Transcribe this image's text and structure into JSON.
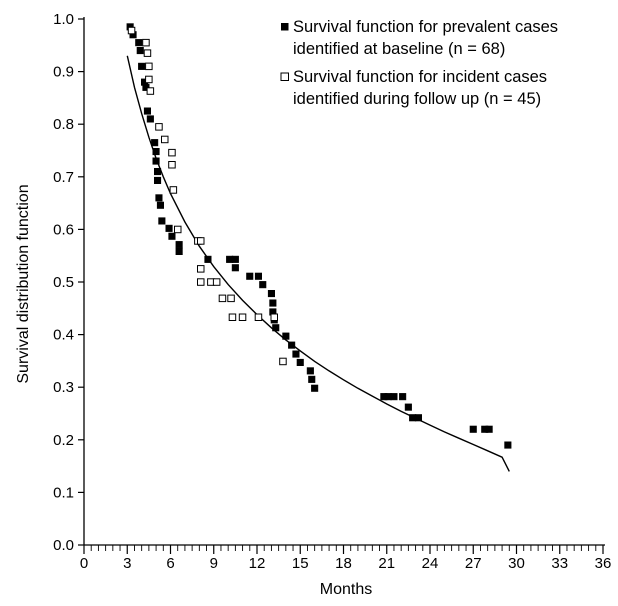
{
  "chart_data": {
    "type": "scatter",
    "xlabel": "Months",
    "ylabel": "Survival distribution function",
    "xlim": [
      0,
      36
    ],
    "ylim": [
      0.0,
      1.0
    ],
    "xticks": [
      0,
      3,
      6,
      9,
      12,
      15,
      18,
      21,
      24,
      27,
      30,
      33,
      36
    ],
    "yticks": [
      0.0,
      0.1,
      0.2,
      0.3,
      0.4,
      0.5,
      0.6,
      0.7,
      0.8,
      0.9,
      1.0
    ],
    "x_minor_step": 0.5,
    "grid": false,
    "legend": {
      "position": "top-right"
    },
    "series": [
      {
        "name": "Survival function for prevalent cases identified at baseline (n = 68)",
        "marker": "filled-square",
        "color": "#000000",
        "points": [
          [
            3.2,
            0.985
          ],
          [
            3.4,
            0.97
          ],
          [
            3.8,
            0.955
          ],
          [
            3.9,
            0.94
          ],
          [
            4.0,
            0.91
          ],
          [
            4.2,
            0.88
          ],
          [
            4.3,
            0.87
          ],
          [
            4.4,
            0.825
          ],
          [
            4.6,
            0.81
          ],
          [
            4.9,
            0.765
          ],
          [
            5.0,
            0.748
          ],
          [
            5.0,
            0.73
          ],
          [
            5.1,
            0.71
          ],
          [
            5.1,
            0.693
          ],
          [
            5.2,
            0.66
          ],
          [
            5.3,
            0.646
          ],
          [
            5.4,
            0.616
          ],
          [
            5.9,
            0.602
          ],
          [
            6.1,
            0.587
          ],
          [
            6.6,
            0.571
          ],
          [
            6.6,
            0.558
          ],
          [
            8.6,
            0.543
          ],
          [
            10.1,
            0.543
          ],
          [
            10.5,
            0.543
          ],
          [
            10.5,
            0.527
          ],
          [
            11.5,
            0.511
          ],
          [
            12.1,
            0.511
          ],
          [
            12.4,
            0.495
          ],
          [
            13.0,
            0.478
          ],
          [
            13.1,
            0.46
          ],
          [
            13.1,
            0.443
          ],
          [
            13.2,
            0.428
          ],
          [
            13.3,
            0.413
          ],
          [
            14.0,
            0.397
          ],
          [
            14.4,
            0.38
          ],
          [
            14.7,
            0.363
          ],
          [
            15.0,
            0.347
          ],
          [
            15.7,
            0.331
          ],
          [
            15.8,
            0.315
          ],
          [
            16.0,
            0.298
          ],
          [
            20.8,
            0.282
          ],
          [
            21.1,
            0.282
          ],
          [
            21.5,
            0.282
          ],
          [
            22.1,
            0.282
          ],
          [
            22.5,
            0.262
          ],
          [
            22.8,
            0.242
          ],
          [
            23.2,
            0.242
          ],
          [
            27.0,
            0.22
          ],
          [
            27.8,
            0.22
          ],
          [
            28.1,
            0.22
          ],
          [
            29.4,
            0.19
          ]
        ]
      },
      {
        "name": "Survival function for incident cases identified during follow up (n = 45)",
        "marker": "open-square",
        "color": "#000000",
        "points": [
          [
            3.3,
            0.978
          ],
          [
            4.3,
            0.955
          ],
          [
            4.4,
            0.935
          ],
          [
            4.5,
            0.91
          ],
          [
            4.5,
            0.885
          ],
          [
            4.6,
            0.863
          ],
          [
            5.2,
            0.795
          ],
          [
            5.6,
            0.771
          ],
          [
            6.1,
            0.746
          ],
          [
            6.1,
            0.723
          ],
          [
            6.2,
            0.675
          ],
          [
            6.5,
            0.6
          ],
          [
            7.9,
            0.578
          ],
          [
            8.1,
            0.578
          ],
          [
            8.1,
            0.525
          ],
          [
            8.1,
            0.5
          ],
          [
            8.8,
            0.5
          ],
          [
            9.2,
            0.5
          ],
          [
            9.6,
            0.469
          ],
          [
            10.2,
            0.469
          ],
          [
            10.3,
            0.433
          ],
          [
            11.0,
            0.433
          ],
          [
            12.1,
            0.433
          ],
          [
            13.2,
            0.433
          ],
          [
            13.8,
            0.349
          ]
        ]
      },
      {
        "name": "",
        "type": "line",
        "color": "#000000",
        "x": [
          3.0,
          3.5,
          4.0,
          4.5,
          5.0,
          5.5,
          6.0,
          7.0,
          8.0,
          9.0,
          10.0,
          11.0,
          12.0,
          13.0,
          14.0,
          15.0,
          16.0,
          17.0,
          18.0,
          19.0,
          20.0,
          21.0,
          22.0,
          23.0,
          24.0,
          25.0,
          26.0,
          27.0,
          28.0,
          29.0,
          29.5
        ],
        "y": [
          0.93,
          0.87,
          0.82,
          0.775,
          0.735,
          0.7,
          0.668,
          0.614,
          0.568,
          0.529,
          0.495,
          0.465,
          0.438,
          0.413,
          0.39,
          0.369,
          0.349,
          0.331,
          0.314,
          0.298,
          0.283,
          0.268,
          0.254,
          0.241,
          0.228,
          0.215,
          0.203,
          0.191,
          0.179,
          0.167,
          0.14
        ]
      }
    ]
  }
}
